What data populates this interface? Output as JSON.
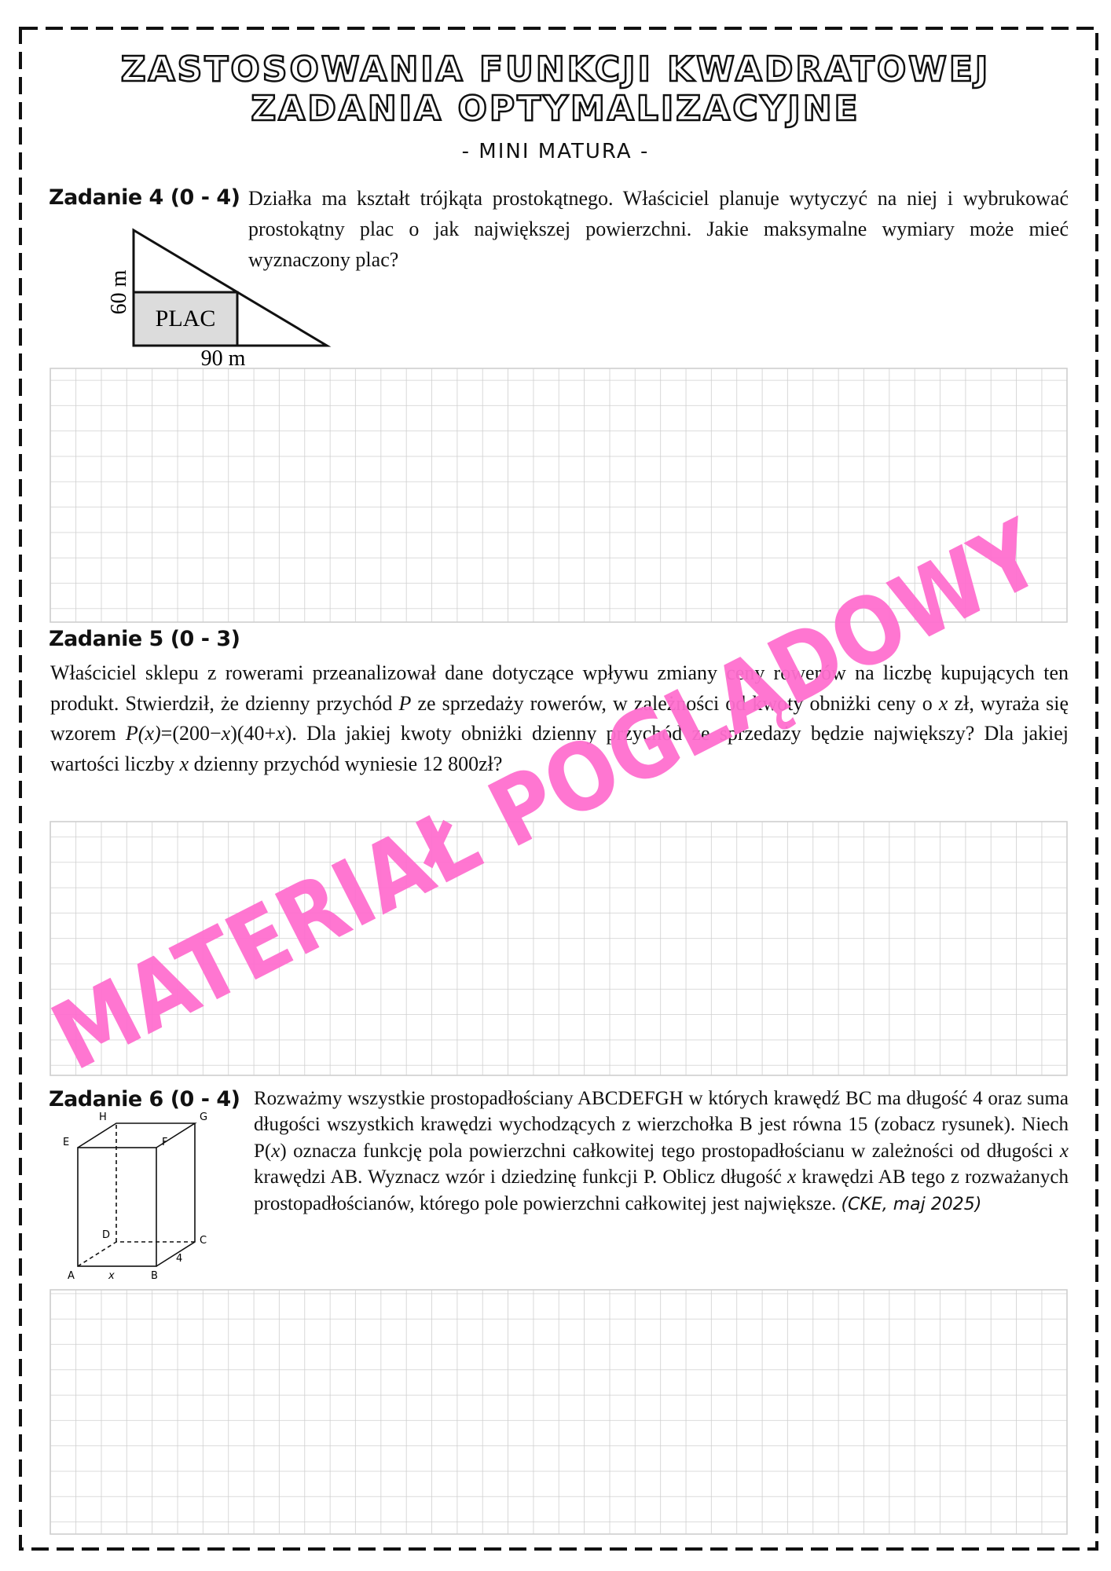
{
  "header": {
    "title_lines": [
      "ZASTOSOWANIA FUNKCJI KWADRATOWEJ",
      "ZADANIA OPTYMALIZACYJNE"
    ],
    "subtitle": "- MINI MATURA -"
  },
  "tasks": [
    {
      "label": "Zadanie 4 (0 - 4)",
      "text": [
        {
          "text": "Działka ma kształt trójkąta prostokątnego. Właściciel planuje wytyczyć na niej i wybrukować prostokątny plac o jak największej powierzchni. Jakie maksymalne wymiary może mieć wyznaczony plac?"
        }
      ],
      "figure": {
        "area_label": "PLAC",
        "height_label": "60 m",
        "width_label": "90 m"
      }
    },
    {
      "label": "Zadanie 5 (0 - 3)",
      "text": [
        {
          "text": "Właściciel sklepu z rowerami przeanalizował dane dotyczące wpływu zmiany ceny rowerów na liczbę kupujących ten produkt. Stwierdził, że dzienny przychód "
        },
        {
          "text": "P",
          "italic": true
        },
        {
          "text": " ze sprzedaży rowerów, w zależności od kwoty obniżki ceny o "
        },
        {
          "text": "x",
          "italic": true
        },
        {
          "text": " zł, wyraża się wzorem "
        },
        {
          "text": "P(x)",
          "italic": true
        },
        {
          "text": "=(200−"
        },
        {
          "text": "x",
          "italic": true
        },
        {
          "text": ")(40+"
        },
        {
          "text": "x",
          "italic": true
        },
        {
          "text": "). Dla jakiej kwoty obniżki dzienny przychód ze sprzedaży będzie największy? Dla jakiej wartości liczby "
        },
        {
          "text": "x",
          "italic": true
        },
        {
          "text": " dzienny przychód wyniesie 12 800zł?"
        }
      ]
    },
    {
      "label": "Zadanie 6 (0 - 4)",
      "text": [
        {
          "text": "Rozważmy wszystkie prostopadłościany ABCDEFGH w których krawędź BC ma długość 4 oraz suma długości wszystkich krawędzi wychodzących z wierzchołka B jest równa 15 (zobacz rysunek). Niech P("
        },
        {
          "text": "x",
          "italic": true
        },
        {
          "text": ") oznacza funkcję pola powierzchni całkowitej tego prostopadłościanu w zależności od długości "
        },
        {
          "text": "x",
          "italic": true
        },
        {
          "text": " krawędzi AB. Wyznacz wzór i dziedzinę funkcji P. Oblicz długość "
        },
        {
          "text": "x",
          "italic": true
        },
        {
          "text": " krawędzi AB tego z rozważanych prostopadłościanów, którego pole powierzchni całkowitej jest największe. "
        }
      ],
      "source": "(CKE, maj 2025)",
      "figure": {
        "vertices": [
          "A",
          "B",
          "C",
          "D",
          "E",
          "F",
          "G",
          "H"
        ],
        "edge_ab": "x",
        "edge_bc": "4"
      }
    }
  ],
  "watermark": "MATERIAŁ POGLĄDOWY"
}
